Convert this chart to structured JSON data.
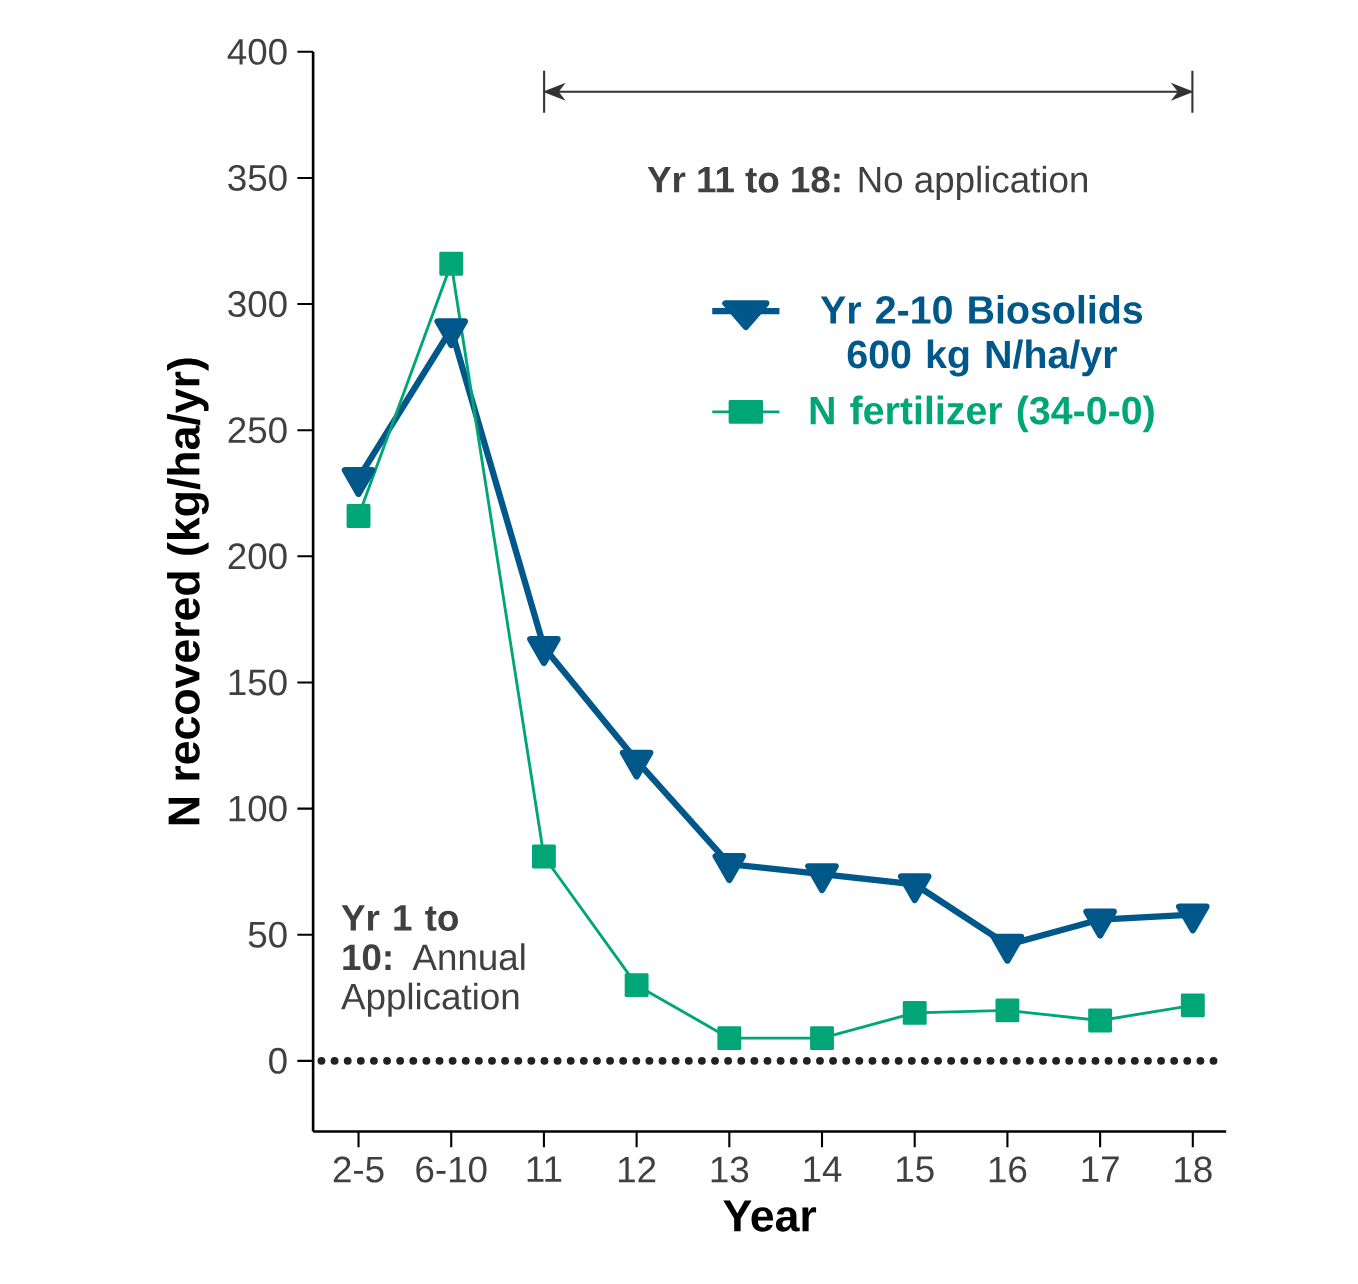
{
  "chart_data": {
    "type": "line",
    "xlabel": "Year",
    "ylabel": "N recovered (kg/ha/yr)",
    "categories": [
      "2-5",
      "6-10",
      "11",
      "12",
      "13",
      "14",
      "15",
      "16",
      "17",
      "18"
    ],
    "series": [
      {
        "name": "Yr 2-10 Biosolids 600 kg N/ha/yr",
        "color": "#00578a",
        "marker": "triangle",
        "values": [
          231,
          290,
          164,
          119,
          78,
          74,
          70,
          46,
          56,
          58
        ]
      },
      {
        "name": "N fertilizer (34-0-0)",
        "color": "#00a676",
        "marker": "square",
        "values": [
          216,
          316,
          81,
          30,
          9,
          9,
          19,
          20,
          16,
          22
        ]
      }
    ],
    "ylim": [
      -28,
      400
    ],
    "yticks": [
      0,
      50,
      100,
      150,
      200,
      250,
      300,
      350,
      400
    ],
    "ref_lines": [
      {
        "axis": "y",
        "value": 0,
        "color": "#222222",
        "line_style": "dotted"
      }
    ],
    "annotations": [
      "**Yr 11 to 18:** No application",
      "**Yr 1 to 10:** Annual Application"
    ],
    "legend": "top right",
    "grid": false,
    "line_style": "solid"
  }
}
